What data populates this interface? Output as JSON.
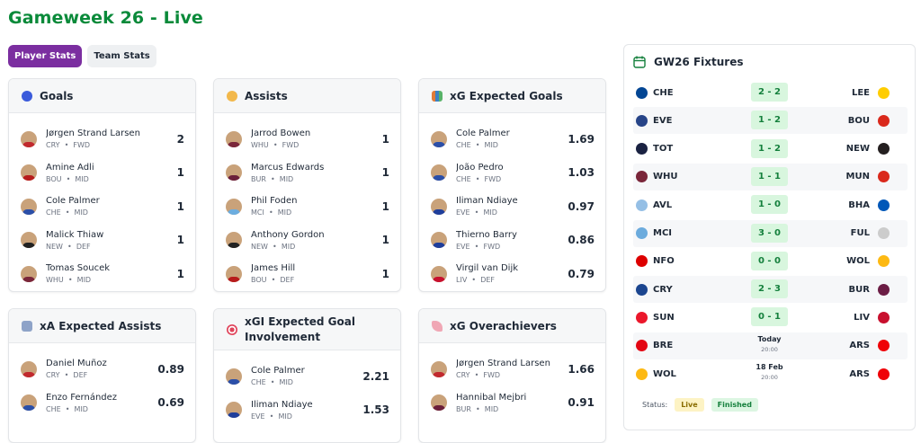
{
  "page": {
    "title": "Gameweek 26 - Live"
  },
  "tabs": [
    {
      "label": "Player Stats",
      "active": true
    },
    {
      "label": "Team Stats",
      "active": false
    }
  ],
  "cards": {
    "goals": {
      "title": "Goals",
      "icon": "soccer-ball-icon",
      "players": [
        {
          "name": "Jørgen Strand Larsen",
          "team": "CRY",
          "pos": "FWD",
          "value": "2"
        },
        {
          "name": "Amine Adli",
          "team": "BOU",
          "pos": "MID",
          "value": "1"
        },
        {
          "name": "Cole Palmer",
          "team": "CHE",
          "pos": "MID",
          "value": "1"
        },
        {
          "name": "Malick Thiaw",
          "team": "NEW",
          "pos": "DEF",
          "value": "1"
        },
        {
          "name": "Tomas Soucek",
          "team": "WHU",
          "pos": "MID",
          "value": "1"
        }
      ]
    },
    "assists": {
      "title": "Assists",
      "icon": "handshake-icon",
      "players": [
        {
          "name": "Jarrod Bowen",
          "team": "WHU",
          "pos": "FWD",
          "value": "1"
        },
        {
          "name": "Marcus Edwards",
          "team": "BUR",
          "pos": "MID",
          "value": "1"
        },
        {
          "name": "Phil Foden",
          "team": "MCI",
          "pos": "MID",
          "value": "1"
        },
        {
          "name": "Anthony Gordon",
          "team": "NEW",
          "pos": "MID",
          "value": "1"
        },
        {
          "name": "James Hill",
          "team": "BOU",
          "pos": "DEF",
          "value": "1"
        }
      ]
    },
    "xg": {
      "title": "xG Expected Goals",
      "icon": "bar-chart-icon",
      "players": [
        {
          "name": "Cole Palmer",
          "team": "CHE",
          "pos": "MID",
          "value": "1.69"
        },
        {
          "name": "João Pedro",
          "team": "CHE",
          "pos": "FWD",
          "value": "1.03"
        },
        {
          "name": "Iliman Ndiaye",
          "team": "EVE",
          "pos": "MID",
          "value": "0.97"
        },
        {
          "name": "Thierno Barry",
          "team": "EVE",
          "pos": "FWD",
          "value": "0.86"
        },
        {
          "name": "Virgil van Dijk",
          "team": "LIV",
          "pos": "DEF",
          "value": "0.79"
        }
      ]
    },
    "xa": {
      "title": "xA Expected Assists",
      "icon": "trend-chart-icon",
      "players": [
        {
          "name": "Daniel Muñoz",
          "team": "CRY",
          "pos": "DEF",
          "value": "0.89"
        },
        {
          "name": "Enzo Fernández",
          "team": "CHE",
          "pos": "MID",
          "value": "0.69"
        }
      ]
    },
    "xgi": {
      "title": "xGI Expected Goal Involvement",
      "title_line1": "xGI Expected Goal",
      "title_line2": "Involvement",
      "icon": "target-icon",
      "players": [
        {
          "name": "Cole Palmer",
          "team": "CHE",
          "pos": "MID",
          "value": "2.21"
        },
        {
          "name": "Iliman Ndiaye",
          "team": "EVE",
          "pos": "MID",
          "value": "1.53"
        }
      ]
    },
    "over": {
      "title": "xG Overachievers",
      "icon": "rocket-icon",
      "players": [
        {
          "name": "Jørgen Strand Larsen",
          "team": "CRY",
          "pos": "FWD",
          "value": "1.66"
        },
        {
          "name": "Hannibal Mejbri",
          "team": "BUR",
          "pos": "MID",
          "value": "0.91"
        }
      ]
    }
  },
  "fixtures": {
    "title": "GW26 Fixtures",
    "icon": "calendar-icon",
    "matches": [
      {
        "home": "CHE",
        "away": "LEE",
        "score": "2 - 2"
      },
      {
        "home": "EVE",
        "away": "BOU",
        "score": "1 - 2"
      },
      {
        "home": "TOT",
        "away": "NEW",
        "score": "1 - 2"
      },
      {
        "home": "WHU",
        "away": "MUN",
        "score": "1 - 1"
      },
      {
        "home": "AVL",
        "away": "BHA",
        "score": "1 - 0"
      },
      {
        "home": "MCI",
        "away": "FUL",
        "score": "3 - 0"
      },
      {
        "home": "NFO",
        "away": "WOL",
        "score": "0 - 0"
      },
      {
        "home": "CRY",
        "away": "BUR",
        "score": "2 - 3"
      },
      {
        "home": "SUN",
        "away": "LIV",
        "score": "0 - 1"
      },
      {
        "home": "BRE",
        "away": "ARS",
        "date": "Today",
        "time": "20:00"
      },
      {
        "home": "WOL",
        "away": "ARS",
        "date": "18 Feb",
        "time": "20:00"
      }
    ],
    "status_label": "Status:",
    "legend": [
      {
        "label": "Live"
      },
      {
        "label": "Finished"
      }
    ]
  },
  "colors": {
    "title": "#0a8a3a",
    "active_tab": "#7b2ea0",
    "score_bg": "#d8f6de",
    "score_text": "#15803d",
    "live_bg": "#fdf3c4",
    "finished_bg": "#dcf6e2"
  }
}
